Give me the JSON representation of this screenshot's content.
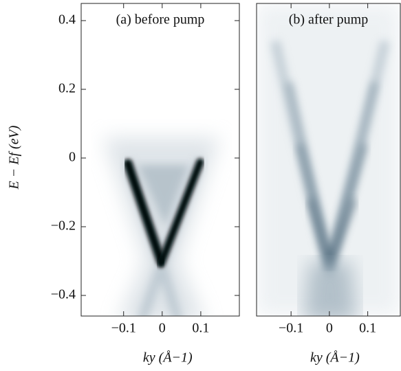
{
  "chart_data": [
    {
      "type": "image",
      "title": "(a) before pump",
      "xlabel": "ky (Å−1)",
      "ylabel": "E − Ef (eV)",
      "xlim": [
        -0.21,
        0.2
      ],
      "ylim": [
        -0.46,
        0.45
      ],
      "xticks": [
        {
          "value": -0.1,
          "label": "−0.1"
        },
        0,
        0.1
      ],
      "yticks": [
        0.4,
        0.2,
        0,
        {
          "value": -0.2,
          "label": "−0.2"
        },
        {
          "value": -0.4,
          "label": "−0.4"
        }
      ]
    },
    {
      "type": "image",
      "title": "(b) after pump",
      "xlabel": "ky (Å−1)",
      "xlim": [
        -0.19,
        0.185
      ],
      "ylim": [
        -0.46,
        0.45
      ],
      "xticks": [
        {
          "value": -0.1,
          "label": "−0.1"
        },
        0,
        0.1
      ]
    }
  ]
}
